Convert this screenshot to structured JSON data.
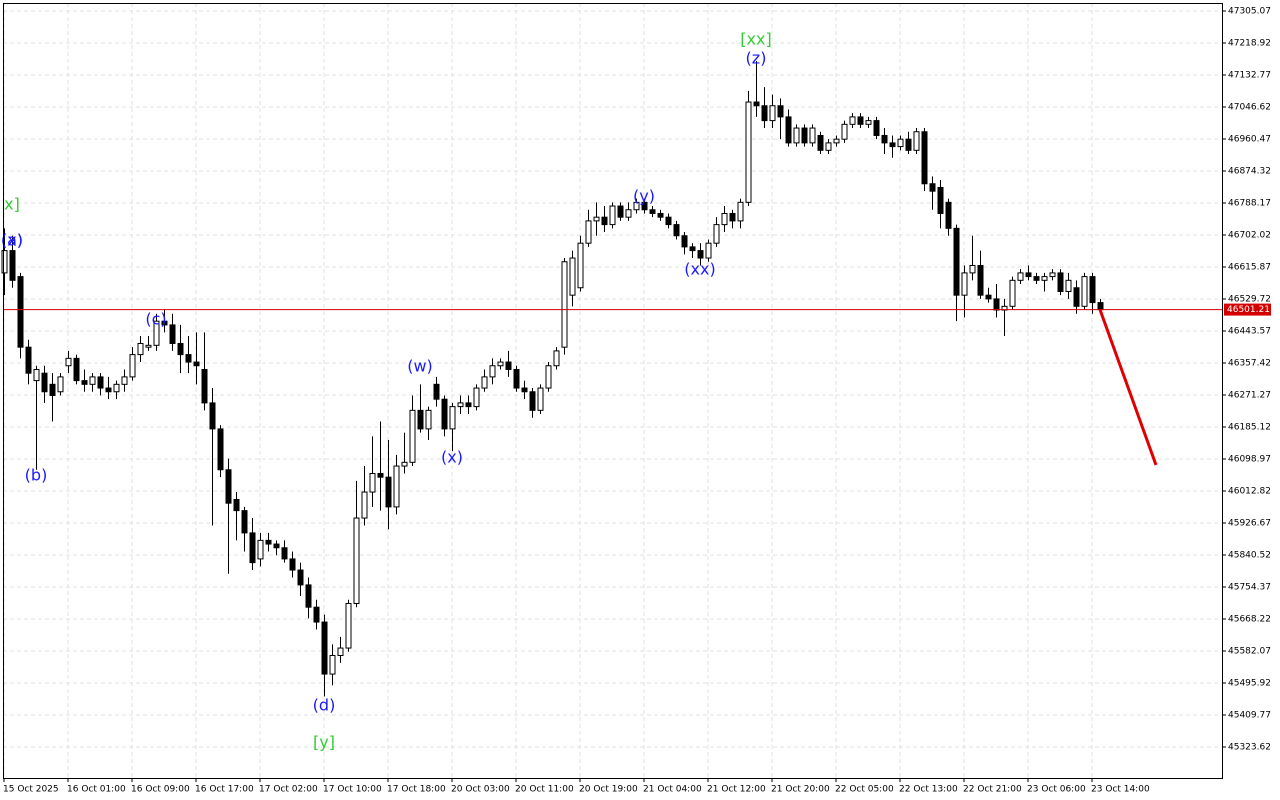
{
  "chart_data": {
    "type": "candlestick",
    "categories": [
      "15 Oct 2025",
      null,
      null,
      null,
      null,
      null,
      null,
      null,
      "16 Oct 01:00",
      null,
      null,
      null,
      null,
      null,
      null,
      null,
      "16 Oct 09:00",
      null,
      null,
      null,
      null,
      null,
      null,
      null,
      "16 Oct 17:00",
      null,
      null,
      null,
      null,
      null,
      null,
      null,
      "17 Oct 02:00",
      null,
      null,
      null,
      null,
      null,
      null,
      null,
      "17 Oct 10:00",
      null,
      null,
      null,
      null,
      null,
      null,
      null,
      "17 Oct 18:00",
      null,
      null,
      null,
      null,
      null,
      null,
      null,
      "20 Oct 03:00",
      null,
      null,
      null,
      null,
      null,
      null,
      null,
      "20 Oct 11:00",
      null,
      null,
      null,
      null,
      null,
      null,
      null,
      "20 Oct 19:00",
      null,
      null,
      null,
      null,
      null,
      null,
      null,
      "21 Oct 04:00",
      null,
      null,
      null,
      null,
      null,
      null,
      null,
      "21 Oct 12:00",
      null,
      null,
      null,
      null,
      null,
      null,
      null,
      "21 Oct 20:00",
      null,
      null,
      null,
      null,
      null,
      null,
      null,
      "22 Oct 05:00",
      null,
      null,
      null,
      null,
      null,
      null,
      null,
      "22 Oct 13:00",
      null,
      null,
      null,
      null,
      null,
      null,
      null,
      "22 Oct 21:00",
      null,
      null,
      null,
      null,
      null,
      null,
      null,
      "23 Oct 06:00",
      null,
      null,
      null,
      null,
      null,
      null,
      null,
      "23 Oct 14:00",
      null
    ],
    "open": [
      46600,
      46660,
      46590,
      46400,
      46310,
      46330,
      46300,
      46280,
      46350,
      46370,
      46310,
      46300,
      46320,
      46290,
      46280,
      46300,
      46320,
      46380,
      46400,
      46405,
      46470,
      46460,
      46410,
      46380,
      46360,
      46340,
      46250,
      46180,
      46070,
      45990,
      45960,
      45900,
      45830,
      45880,
      45870,
      45860,
      45830,
      45800,
      45760,
      45700,
      45660,
      45520,
      45570,
      45590,
      45710,
      45940,
      46010,
      46060,
      46050,
      45970,
      46080,
      46090,
      46230,
      46180,
      46300,
      46260,
      46180,
      46240,
      46250,
      46240,
      46290,
      46320,
      46350,
      46360,
      46340,
      46290,
      46280,
      46230,
      46290,
      46350,
      46400,
      46540,
      46560,
      46680,
      46740,
      46750,
      46730,
      46780,
      46750,
      46770,
      46790,
      46770,
      46760,
      46750,
      46730,
      46700,
      46670,
      46660,
      46640,
      46680,
      46730,
      46760,
      46740,
      46790,
      47060,
      47050,
      47010,
      47050,
      47020,
      46950,
      46990,
      46950,
      46970,
      46930,
      46950,
      46960,
      47000,
      47020,
      47000,
      47010,
      46970,
      46950,
      46940,
      46960,
      46930,
      46980,
      46840,
      46830,
      46790,
      46720,
      46540,
      46600,
      46620,
      46540,
      46530,
      46500,
      46510,
      46580,
      46600,
      46590,
      46580,
      46590,
      46600,
      46550,
      46560,
      46510,
      46590,
      46520
    ],
    "high": [
      46720,
      46700,
      46600,
      46420,
      46350,
      46350,
      46330,
      46330,
      46390,
      46380,
      46340,
      46330,
      46330,
      46320,
      46310,
      46340,
      46400,
      46430,
      46430,
      46490,
      46500,
      46490,
      46460,
      46430,
      46440,
      46440,
      46290,
      46190,
      46100,
      46010,
      45970,
      45940,
      45900,
      45900,
      45880,
      45880,
      45850,
      45820,
      45780,
      45720,
      45680,
      45600,
      45620,
      45720,
      46040,
      46080,
      46160,
      46200,
      46150,
      46110,
      46170,
      46270,
      46300,
      46240,
      46320,
      46270,
      46250,
      46270,
      46270,
      46300,
      46340,
      46370,
      46370,
      46390,
      46350,
      46310,
      46290,
      46300,
      46360,
      46400,
      46640,
      46660,
      46700,
      46770,
      46790,
      46780,
      46790,
      46790,
      46790,
      46800,
      46800,
      46780,
      46770,
      46760,
      46740,
      46710,
      46680,
      46680,
      46690,
      46750,
      46780,
      46770,
      46800,
      47090,
      47170,
      47100,
      47080,
      47070,
      47040,
      47000,
      47000,
      47000,
      46980,
      46960,
      46970,
      47010,
      47030,
      47030,
      47020,
      47020,
      46990,
      46970,
      46970,
      46980,
      46990,
      46990,
      46860,
      46850,
      46800,
      46730,
      46620,
      46700,
      46660,
      46560,
      46570,
      46530,
      46590,
      46610,
      46620,
      46600,
      46600,
      46610,
      46610,
      46600,
      46580,
      46600,
      46600,
      46530
    ],
    "low": [
      46540,
      46560,
      46370,
      46300,
      46070,
      46250,
      46200,
      46270,
      46330,
      46300,
      46280,
      46280,
      46270,
      46260,
      46260,
      46280,
      46310,
      46360,
      46390,
      46390,
      46440,
      46390,
      46330,
      46330,
      46300,
      46230,
      45920,
      46050,
      45790,
      45880,
      45850,
      45800,
      45810,
      45850,
      45840,
      45820,
      45780,
      45730,
      45670,
      45640,
      45460,
      45490,
      45550,
      45580,
      45700,
      45920,
      45970,
      45960,
      45910,
      45950,
      46060,
      46080,
      46170,
      46150,
      46240,
      46160,
      46120,
      46220,
      46220,
      46230,
      46280,
      46300,
      46340,
      46320,
      46280,
      46260,
      46210,
      46220,
      46280,
      46340,
      46380,
      46510,
      46550,
      46670,
      46700,
      46710,
      46720,
      46740,
      46740,
      46760,
      46760,
      46750,
      46740,
      46720,
      46690,
      46650,
      46640,
      46620,
      46630,
      46670,
      46710,
      46720,
      46720,
      46780,
      47020,
      46990,
      46990,
      46960,
      46940,
      46940,
      46940,
      46940,
      46920,
      46920,
      46940,
      46950,
      46990,
      46990,
      46990,
      46960,
      46920,
      46910,
      46930,
      46920,
      46920,
      46820,
      46770,
      46720,
      46700,
      46470,
      46480,
      46580,
      46530,
      46520,
      46480,
      46430,
      46500,
      46570,
      46580,
      46570,
      46550,
      46580,
      46540,
      46530,
      46490,
      46500,
      46490,
      46490
    ],
    "close": [
      46660,
      46580,
      46400,
      46330,
      46340,
      46280,
      46270,
      46320,
      46370,
      46310,
      46300,
      46320,
      46290,
      46280,
      46300,
      46320,
      46380,
      46410,
      46405,
      46470,
      46460,
      46410,
      46380,
      46360,
      46350,
      46250,
      46180,
      46070,
      45980,
      45960,
      45900,
      45820,
      45880,
      45870,
      45860,
      45830,
      45800,
      45760,
      45700,
      45660,
      45520,
      45570,
      45590,
      45710,
      45940,
      46010,
      46060,
      46050,
      45970,
      46080,
      46090,
      46230,
      46180,
      46230,
      46260,
      46180,
      46240,
      46250,
      46240,
      46290,
      46320,
      46350,
      46360,
      46340,
      46290,
      46280,
      46230,
      46290,
      46350,
      46390,
      46630,
      46640,
      46680,
      46740,
      46750,
      46730,
      46780,
      46750,
      46770,
      46790,
      46770,
      46760,
      46750,
      46730,
      46700,
      46670,
      46660,
      46640,
      46680,
      46730,
      46760,
      46740,
      46790,
      47060,
      47050,
      47010,
      47050,
      47020,
      46950,
      46990,
      46950,
      46990,
      46930,
      46950,
      46960,
      47000,
      47020,
      47000,
      47010,
      46970,
      46950,
      46940,
      46960,
      46930,
      46980,
      46840,
      46820,
      46760,
      46720,
      46540,
      46600,
      46620,
      46540,
      46530,
      46500,
      46510,
      46580,
      46600,
      46590,
      46580,
      46590,
      46600,
      46550,
      46580,
      46510,
      46590,
      46520,
      46501
    ],
    "xlim": [
      -0.125,
      152.25
    ],
    "ylim": [
      45240.15,
      47326.61
    ],
    "yticks": [
      47305.07,
      47218.92,
      47132.77,
      47046.62,
      46960.47,
      46874.32,
      46788.17,
      46702.02,
      46615.87,
      46529.72,
      46443.57,
      46357.42,
      46271.27,
      46185.12,
      46098.97,
      46012.82,
      45926.67,
      45840.52,
      45754.37,
      45668.22,
      45582.07,
      45495.92,
      45409.77,
      45323.62
    ],
    "grid": true,
    "current_price": 46501.21,
    "current_price_color": "#d40000",
    "forecast": {
      "x": [
        137,
        144
      ],
      "values": [
        46501.21,
        46083
      ],
      "color": "#e00000"
    },
    "annotations": [
      {
        "text": "x]",
        "x": 1,
        "y": 46783,
        "color": "#33cc33"
      },
      {
        "text": "(a)",
        "x": 1,
        "y": 46686,
        "color": "#1a1aff"
      },
      {
        "text": "(x)",
        "x": 1,
        "y": 46686,
        "color": "#1a1aff"
      },
      {
        "text": "(b)",
        "x": 4,
        "y": 46053,
        "color": "#1a1aff"
      },
      {
        "text": "(c)",
        "x": 19,
        "y": 46473,
        "color": "#1a1aff"
      },
      {
        "text": "(d)",
        "x": 40,
        "y": 45434,
        "color": "#1a1aff"
      },
      {
        "text": "[y]",
        "x": 40,
        "y": 45334,
        "color": "#33cc33"
      },
      {
        "text": "(w)",
        "x": 52,
        "y": 46347,
        "color": "#1a1aff"
      },
      {
        "text": "(x)",
        "x": 56,
        "y": 46102,
        "color": "#1a1aff"
      },
      {
        "text": "(y)",
        "x": 80,
        "y": 46804,
        "color": "#1a1aff"
      },
      {
        "text": "(xx)",
        "x": 87,
        "y": 46608,
        "color": "#1a1aff"
      },
      {
        "text": "(z)",
        "x": 94,
        "y": 47176,
        "color": "#1a1aff"
      },
      {
        "text": "[xx]",
        "x": 94,
        "y": 47227,
        "color": "#33cc33"
      }
    ]
  }
}
